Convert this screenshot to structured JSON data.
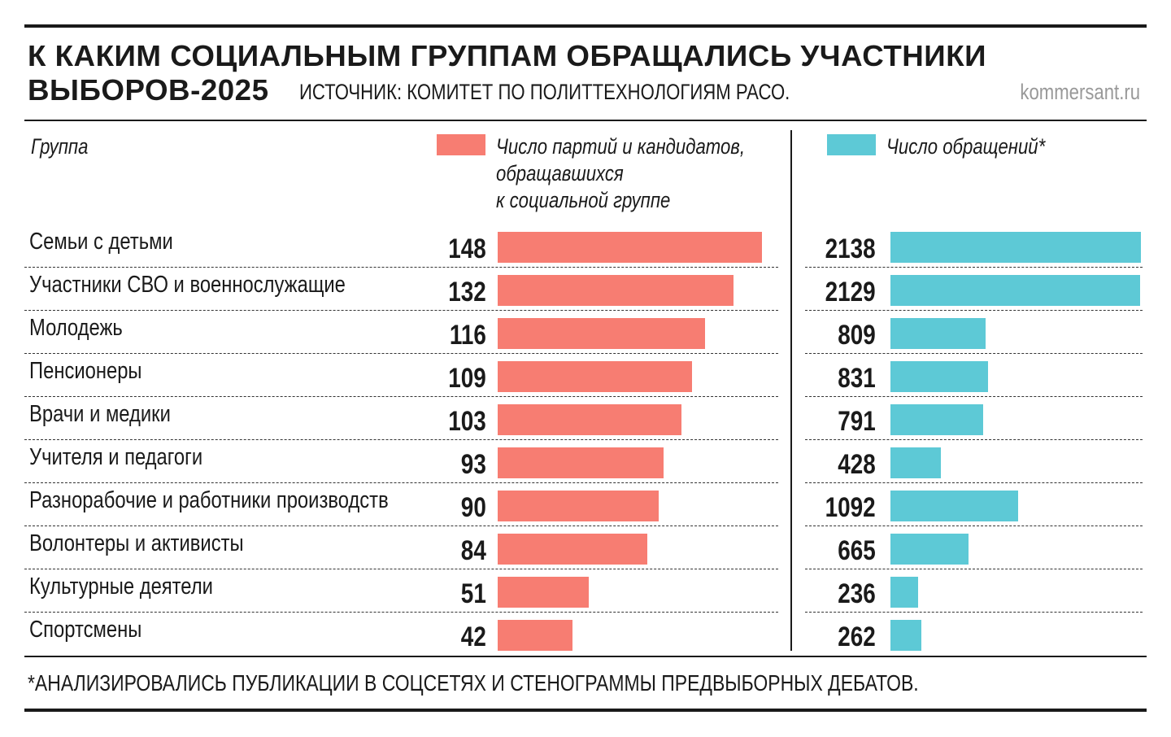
{
  "header": {
    "title_line1": "К КАКИМ СОЦИАЛЬНЫМ ГРУППАМ ОБРАЩАЛИСЬ УЧАСТНИКИ",
    "title_line2": "ВЫБОРОВ-2025",
    "source": "ИСТОЧНИК: КОМИТЕТ ПО ПОЛИТТЕХНОЛОГИЯМ РАСО.",
    "site": "kommersant.ru"
  },
  "footnote": "*АНАЛИЗИРОВАЛИСЬ ПУБЛИКАЦИИ В СОЦСЕТЯХ И СТЕНОГРАММЫ ПРЕДВЫБОРНЫХ ДЕБАТОВ.",
  "colors": {
    "series1": "#f77d72",
    "series2": "#5dc9d6"
  },
  "chart_data": {
    "type": "bar",
    "orientation": "horizontal",
    "category_header": "Группа",
    "categories": [
      "Семьи с детьми",
      "Участники СВО и военнослужащие",
      "Молодежь",
      "Пенсионеры",
      "Врачи и медики",
      "Учителя и педагоги",
      "Разнорабочие и работники производств",
      "Волонтеры и активисты",
      "Культурные деятели",
      "Спортсмены"
    ],
    "series": [
      {
        "name_lines": [
          "Число партий и кандидатов,",
          "обращавшихся",
          "к социальной группе"
        ],
        "values": [
          148,
          132,
          116,
          109,
          103,
          93,
          90,
          84,
          51,
          42
        ]
      },
      {
        "name_lines": [
          "Число обращений*"
        ],
        "values": [
          2138,
          2129,
          809,
          831,
          791,
          428,
          1092,
          665,
          236,
          262
        ]
      }
    ]
  }
}
